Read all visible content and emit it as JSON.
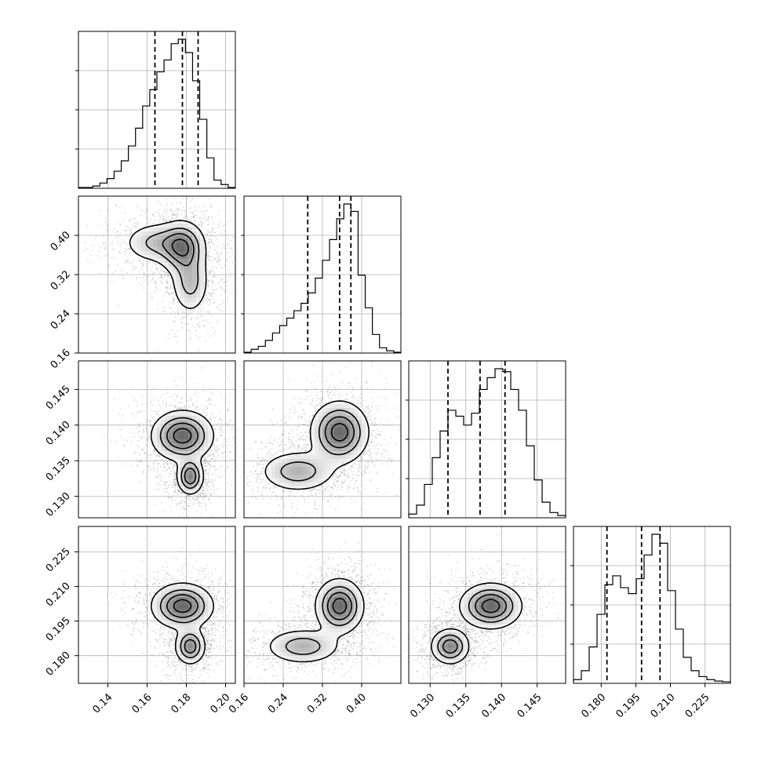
{
  "chart_data": {
    "type": "corner",
    "parameters": [
      {
        "range": [
          0.125,
          0.205
        ],
        "ticks": [
          0.14,
          0.16,
          0.18,
          0.2
        ],
        "tick_labels": [
          "0.14",
          "0.16",
          "0.18",
          "0.20"
        ],
        "quantiles": [
          0.164,
          0.178,
          0.186
        ]
      },
      {
        "range": [
          0.16,
          0.48
        ],
        "ticks": [
          0.16,
          0.24,
          0.32,
          0.4
        ],
        "tick_labels": [
          "0.16",
          "0.24",
          "0.32",
          "0.40"
        ],
        "quantiles": [
          0.29,
          0.355,
          0.378
        ]
      },
      {
        "range": [
          0.127,
          0.149
        ],
        "ticks": [
          0.13,
          0.135,
          0.14,
          0.145
        ],
        "tick_labels": [
          "0.130",
          "0.135",
          "0.140",
          "0.145"
        ],
        "quantiles": [
          0.1325,
          0.137,
          0.1405
        ]
      },
      {
        "range": [
          0.168,
          0.236
        ],
        "ticks": [
          0.18,
          0.195,
          0.21,
          0.225
        ],
        "tick_labels": [
          "0.180",
          "0.195",
          "0.210",
          "0.225"
        ],
        "quantiles": [
          0.1825,
          0.1975,
          0.2055
        ]
      }
    ],
    "histograms": [
      {
        "param": 0,
        "heights": [
          0,
          0,
          0.01,
          0.03,
          0.06,
          0.11,
          0.18,
          0.28,
          0.4,
          0.55,
          0.66,
          0.78,
          0.86,
          0.97,
          1.0,
          0.91,
          0.72,
          0.46,
          0.2,
          0.05,
          0.02,
          0
        ]
      },
      {
        "param": 1,
        "heights": [
          0,
          0.02,
          0.04,
          0.08,
          0.13,
          0.18,
          0.23,
          0.28,
          0.33,
          0.4,
          0.5,
          0.62,
          0.76,
          0.9,
          1.0,
          0.95,
          0.52,
          0.3,
          0.12,
          0.03,
          0.01,
          0
        ]
      },
      {
        "param": 2,
        "heights": [
          0.02,
          0.08,
          0.22,
          0.4,
          0.58,
          0.72,
          0.68,
          0.62,
          0.7,
          0.86,
          0.94,
          1.0,
          0.98,
          0.86,
          0.72,
          0.48,
          0.25,
          0.1,
          0.03,
          0.01
        ]
      },
      {
        "param": 3,
        "heights": [
          0.02,
          0.08,
          0.24,
          0.46,
          0.66,
          0.72,
          0.64,
          0.6,
          0.7,
          0.86,
          1.0,
          0.94,
          0.62,
          0.36,
          0.17,
          0.08,
          0.04,
          0.02,
          0.01,
          0.005
        ]
      }
    ],
    "pairs": [
      {
        "x": 0,
        "y": 1,
        "modes": [
          {
            "x": 0.178,
            "y": 0.375,
            "w": 1.0,
            "sx": 0.006,
            "sy": 0.028
          },
          {
            "x": 0.182,
            "y": 0.305,
            "w": 0.6,
            "sx": 0.005,
            "sy": 0.034
          },
          {
            "x": 0.165,
            "y": 0.385,
            "w": 0.55,
            "sx": 0.009,
            "sy": 0.022
          }
        ]
      },
      {
        "x": 0,
        "y": 2,
        "modes": [
          {
            "x": 0.178,
            "y": 0.1385,
            "w": 1.0,
            "sx": 0.008,
            "sy": 0.0018
          },
          {
            "x": 0.182,
            "y": 0.1328,
            "w": 0.85,
            "sx": 0.0035,
            "sy": 0.0013
          }
        ]
      },
      {
        "x": 1,
        "y": 2,
        "modes": [
          {
            "x": 0.355,
            "y": 0.139,
            "w": 1.0,
            "sx": 0.03,
            "sy": 0.0022
          },
          {
            "x": 0.27,
            "y": 0.1335,
            "w": 0.55,
            "sx": 0.04,
            "sy": 0.0015
          }
        ]
      },
      {
        "x": 0,
        "y": 3,
        "modes": [
          {
            "x": 0.178,
            "y": 0.2015,
            "w": 1.0,
            "sx": 0.008,
            "sy": 0.005
          },
          {
            "x": 0.182,
            "y": 0.184,
            "w": 0.8,
            "sx": 0.004,
            "sy": 0.004
          }
        ]
      },
      {
        "x": 1,
        "y": 3,
        "modes": [
          {
            "x": 0.355,
            "y": 0.2015,
            "w": 1.0,
            "sx": 0.025,
            "sy": 0.006
          },
          {
            "x": 0.28,
            "y": 0.184,
            "w": 0.55,
            "sx": 0.04,
            "sy": 0.004
          }
        ]
      },
      {
        "x": 2,
        "y": 3,
        "modes": [
          {
            "x": 0.1385,
            "y": 0.2015,
            "w": 1.0,
            "sx": 0.0022,
            "sy": 0.005
          },
          {
            "x": 0.1328,
            "y": 0.184,
            "w": 0.8,
            "sx": 0.0014,
            "sy": 0.004
          }
        ]
      }
    ],
    "grid": true,
    "legend": "none",
    "colors": {
      "line": "#000000",
      "grid": "#b0b0b0",
      "shade": "#808080"
    }
  }
}
